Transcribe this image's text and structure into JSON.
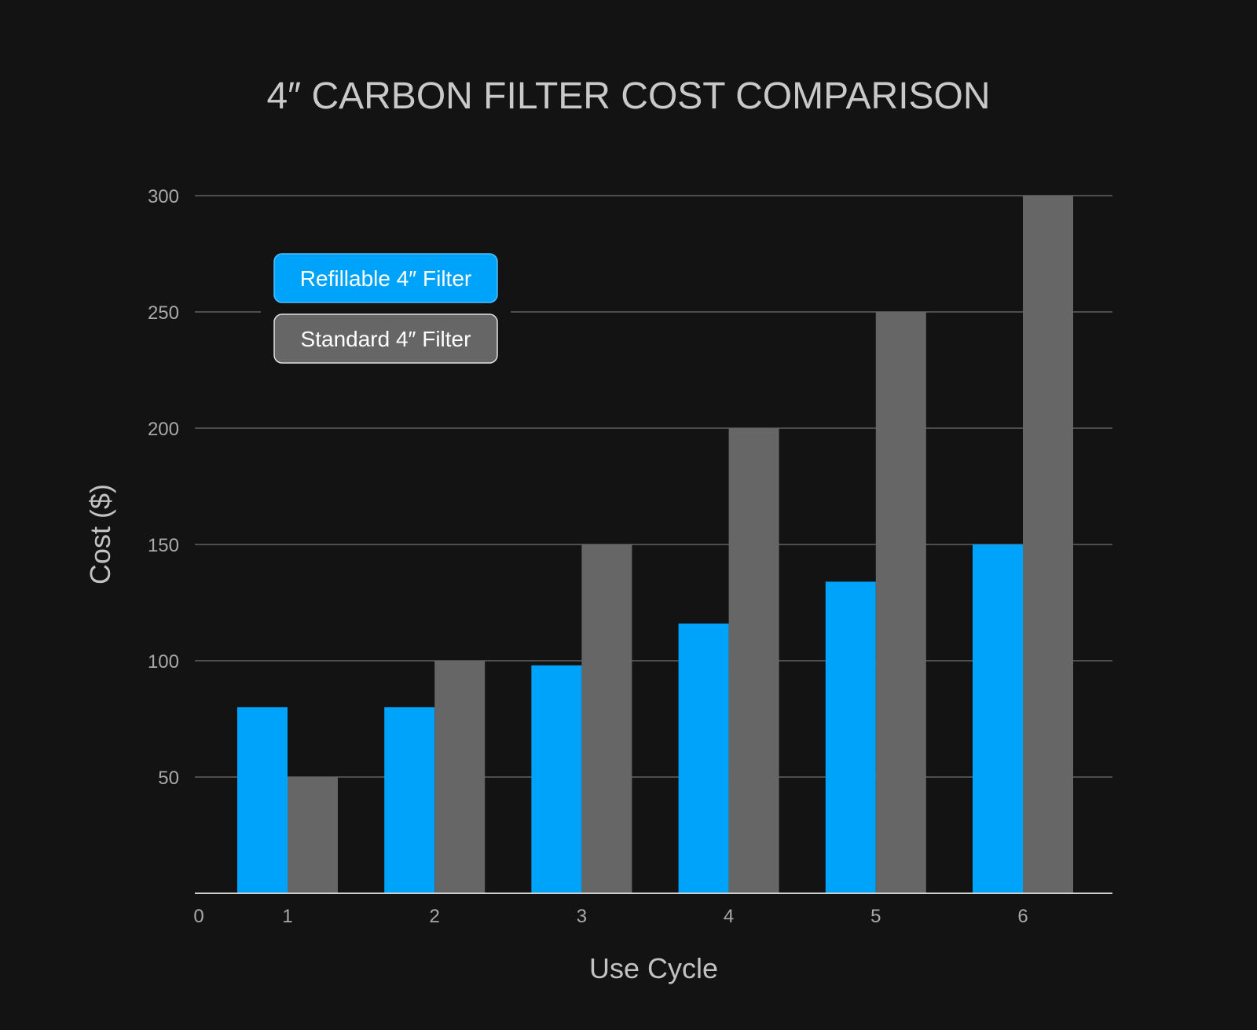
{
  "chart_data": {
    "type": "bar",
    "title": "4″ CARBON FILTER COST COMPARISON",
    "xlabel": "Use Cycle",
    "ylabel": "Cost ($)",
    "x_origin_label": "0",
    "categories": [
      "1",
      "2",
      "3",
      "4",
      "5",
      "6"
    ],
    "yticks": [
      50,
      100,
      150,
      200,
      250,
      300
    ],
    "ylim": [
      0,
      300
    ],
    "grid": true,
    "legend_position": "top-left",
    "series": [
      {
        "name": "Refillable 4″ Filter",
        "color": "#00a3fa",
        "values": [
          80,
          80,
          98,
          116,
          134,
          150
        ]
      },
      {
        "name": "Standard 4″ Filter",
        "color": "#666666",
        "values": [
          50,
          100,
          150,
          200,
          250,
          300
        ]
      }
    ],
    "colors": {
      "background": "#141314",
      "grid": "#8a8a8a",
      "axis": "#cfcfcf"
    }
  }
}
